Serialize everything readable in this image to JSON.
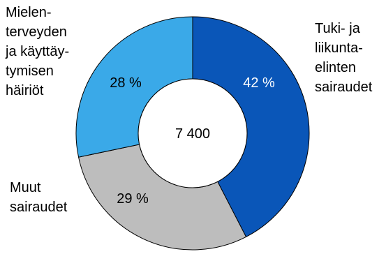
{
  "chart_data": {
    "type": "pie",
    "center_label": "7 400",
    "slices": [
      {
        "name": "Tuki- ja liikuntaelinten sairaudet",
        "name_lines": [
          "Tuki- ja",
          "liikunta-",
          "elinten",
          "sairaudet"
        ],
        "value": 42,
        "value_label": "42 %",
        "color": "#0a56b8",
        "label_color": "#ffffff"
      },
      {
        "name": "Muut sairaudet",
        "name_lines": [
          "Muut",
          "sairaudet"
        ],
        "value": 29,
        "value_label": "29 %",
        "color": "#bdbdbd",
        "label_color": "#000000"
      },
      {
        "name": "Mielenterveyden ja käyttäytymisen häiriöt",
        "name_lines": [
          "Mielen-",
          "terveyden",
          "ja käyttäy-",
          "tymisen",
          "häiriöt"
        ],
        "value": 28,
        "value_label": "28 %",
        "color": "#3aa9e8",
        "label_color": "#000000"
      }
    ]
  }
}
